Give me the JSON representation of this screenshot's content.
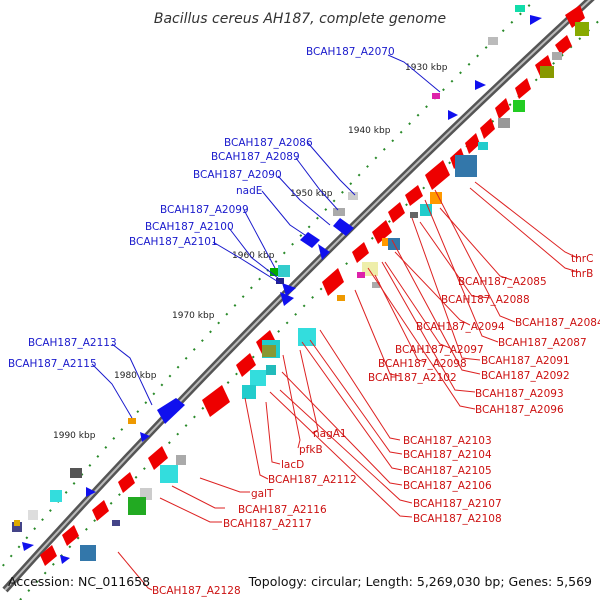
{
  "title": "Bacillus cereus AH187, complete genome",
  "footer": {
    "accession": "Accession: NC_011658",
    "topology": "Topology: circular; Length: 5,269,030 bp; Genes: 5,569"
  },
  "colors": {
    "forward_gene": "#ee0000",
    "reverse_gene": "#1010ee",
    "blue_label": "#1a1acc",
    "red_label": "#cc1111",
    "backbone": "#777777",
    "tick": "#2a8a2a"
  },
  "kbp_ticks": [
    "1930 kbp",
    "1940 kbp",
    "1950 kbp",
    "1960 kbp",
    "1970 kbp",
    "1980 kbp",
    "1990 kbp"
  ],
  "labels_left": [
    "BCAH187_A2070",
    "BCAH187_A2086",
    "BCAH187_A2089",
    "BCAH187_A2090",
    "nadE",
    "BCAH187_A2099",
    "BCAH187_A2100",
    "BCAH187_A2101",
    "BCAH187_A2113",
    "BCAH187_A2115"
  ],
  "labels_right": [
    "thrC",
    "thrB",
    "BCAH187_A2085",
    "BCAH187_A2088",
    "BCAH187_A2084",
    "BCAH187_A2094",
    "BCAH187_A2087",
    "BCAH187_A2097",
    "BCAH187_A2091",
    "BCAH187_A2098",
    "BCAH187_A2092",
    "BCAH187_A2102",
    "BCAH187_A2093",
    "BCAH187_A2096",
    "nagA1",
    "BCAH187_A2103",
    "pfkB",
    "BCAH187_A2104",
    "lacD",
    "BCAH187_A2105",
    "BCAH187_A2106",
    "BCAH187_A2112",
    "galT",
    "BCAH187_A2107",
    "BCAH187_A2116",
    "BCAH187_A2108",
    "BCAH187_A2117",
    "BCAH187_A2128"
  ]
}
